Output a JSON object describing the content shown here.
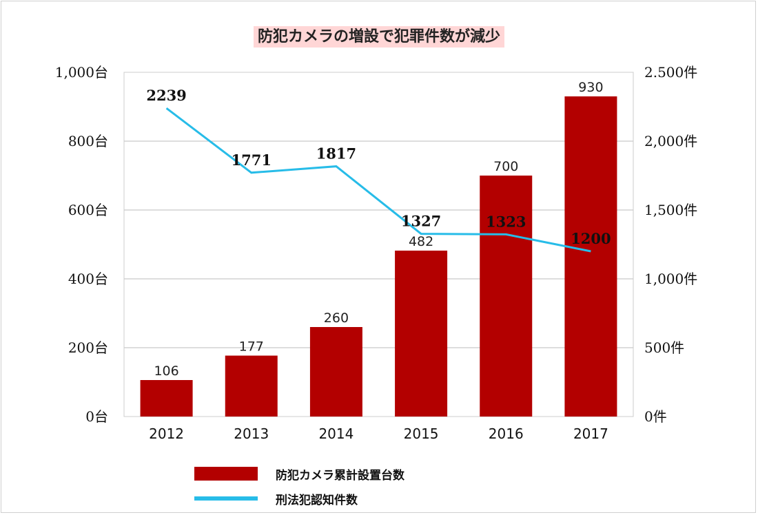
{
  "chart_data": {
    "type": "bar+line",
    "title": "防犯カメラの増設で犯罪件数が減少",
    "categories": [
      "2012",
      "2013",
      "2014",
      "2015",
      "2016",
      "2017"
    ],
    "series": [
      {
        "name": "防犯カメラ累計設置台数",
        "type": "bar",
        "axis": "left",
        "values": [
          106,
          177,
          260,
          482,
          700,
          930
        ],
        "color": "#b30000"
      },
      {
        "name": "刑法犯認知件数",
        "type": "line",
        "axis": "right",
        "values": [
          2239,
          1771,
          1817,
          1327,
          1323,
          1200
        ],
        "color": "#27bce8"
      }
    ],
    "y_left": {
      "ylim": [
        0,
        1000
      ],
      "ticks": [
        0,
        200,
        400,
        600,
        800,
        1000
      ],
      "tick_labels": [
        "0台",
        "200台",
        "400台",
        "600台",
        "800台",
        "1,000台"
      ]
    },
    "y_right": {
      "ylim": [
        0,
        2500
      ],
      "ticks": [
        0,
        500,
        1000,
        1500,
        2000,
        2500
      ],
      "tick_labels": [
        "0件",
        "500件",
        "1,000件",
        "1,500件",
        "2,000件",
        "2.500件"
      ]
    },
    "grid": true,
    "legend_position": "bottom"
  }
}
